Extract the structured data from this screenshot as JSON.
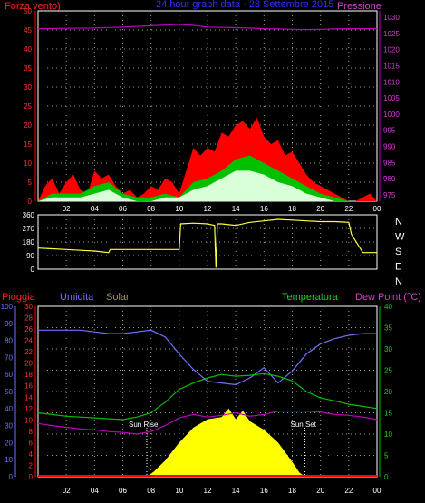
{
  "header": {
    "left_label": "Forza vento)",
    "title": "24 hour graph data - 28 Settembre 2015",
    "right_label": "Pressione"
  },
  "colors": {
    "background": "#000000",
    "wind": "#ff0000",
    "wind_avg": "#00c000",
    "gust_fill": "#d8ffd8",
    "pressure": "#c000c0",
    "direction": "#ffff40",
    "humidity": "#7070ff",
    "temperature": "#00c000",
    "dewpoint": "#c000c0",
    "solar": "#ffff00",
    "rain": "#ff0000",
    "solar_label": "#a09060",
    "grid_dot": "#9a9a9a"
  },
  "chart_data": [
    {
      "type": "area",
      "panel": "wind-pressure",
      "x_ticks": [
        "02",
        "04",
        "06",
        "08",
        "10",
        "12",
        "14",
        "16",
        "18",
        "20",
        "22",
        "00"
      ],
      "ylabel_left": "Forza vento)",
      "ylabel_right": "Pressione",
      "y_left_ticks": [
        0,
        5,
        10,
        15,
        20,
        25,
        30,
        35,
        40,
        45,
        50
      ],
      "y_left_lim": [
        0,
        50
      ],
      "y_right_ticks": [
        975,
        980,
        985,
        990,
        995,
        1000,
        1005,
        1010,
        1015,
        1020,
        1025,
        1030
      ],
      "y_right_lim": [
        973,
        1032
      ],
      "x_lim": [
        0,
        24
      ],
      "series": [
        {
          "name": "Pressione",
          "axis": "right",
          "x": [
            0,
            2,
            4,
            6,
            8,
            9,
            10,
            11,
            12,
            13,
            14,
            15,
            16,
            17,
            18,
            19,
            20,
            21,
            22,
            23,
            24
          ],
          "y": [
            1026.5,
            1026.6,
            1026.7,
            1027.0,
            1027.4,
            1027.6,
            1027.8,
            1027.5,
            1027.0,
            1026.9,
            1026.8,
            1026.7,
            1026.5,
            1026.4,
            1026.3,
            1026.2,
            1026.3,
            1026.4,
            1026.5,
            1026.5,
            1026.5
          ]
        }
      ],
      "wind_max": {
        "x": [
          0,
          0.5,
          1,
          1.5,
          2,
          2.5,
          3,
          3.5,
          4,
          4.5,
          5,
          5.5,
          6,
          6.5,
          7,
          7.5,
          8,
          8.5,
          9,
          9.5,
          10,
          10.5,
          11,
          11.5,
          12,
          12.5,
          13,
          13.5,
          14,
          14.5,
          15,
          15.5,
          16,
          16.5,
          17,
          17.5,
          18,
          18.5,
          19,
          19.5,
          20,
          20.5,
          21,
          21.5,
          22,
          22.5,
          23,
          23.5,
          24
        ],
        "y": [
          0,
          4,
          6,
          2,
          5,
          7,
          3,
          2,
          8,
          6,
          7,
          4,
          2,
          3,
          1,
          2,
          4,
          3,
          6,
          5,
          2,
          8,
          14,
          12,
          14,
          13,
          18,
          17,
          20,
          21,
          19,
          22,
          17,
          15,
          16,
          12,
          13,
          10,
          7,
          5,
          4,
          3,
          2,
          1,
          0,
          0,
          1,
          2,
          0
        ]
      },
      "wind_avg": {
        "x": [
          0,
          1,
          2,
          3,
          4,
          5,
          6,
          7,
          8,
          9,
          10,
          11,
          12,
          13,
          14,
          15,
          16,
          17,
          18,
          19,
          20,
          21,
          22,
          23,
          24
        ],
        "y": [
          0,
          2,
          2,
          2,
          4,
          5,
          2,
          1,
          1,
          2,
          1,
          5,
          6,
          8,
          11,
          12,
          10,
          8,
          6,
          4,
          2,
          1,
          0,
          0,
          0
        ]
      },
      "wind_gust": {
        "x": [
          0,
          1,
          2,
          3,
          4,
          5,
          6,
          7,
          8,
          9,
          10,
          11,
          12,
          13,
          14,
          15,
          16,
          17,
          18,
          19,
          20,
          21,
          22,
          23,
          24
        ],
        "y": [
          0,
          1,
          1,
          1,
          2,
          3,
          1,
          0,
          0,
          1,
          1,
          3,
          4,
          6,
          8,
          8,
          7,
          5,
          4,
          2,
          1,
          0,
          0,
          0,
          0
        ]
      }
    },
    {
      "type": "line",
      "panel": "wind-direction",
      "y_ticks": [
        0,
        90,
        180,
        270,
        360
      ],
      "y_lim": [
        0,
        360
      ],
      "x_lim": [
        0,
        24
      ],
      "compass_labels": [
        "N",
        "W",
        "S",
        "E",
        "N"
      ],
      "series": [
        {
          "name": "direction",
          "x": [
            0,
            1,
            2,
            3,
            4,
            5,
            5.1,
            6,
            7,
            8,
            9,
            10,
            10.1,
            11,
            12,
            12.5,
            12.6,
            12.7,
            13,
            14,
            15,
            16,
            17,
            18,
            19,
            20,
            21,
            22,
            22.2,
            23,
            24
          ],
          "y": [
            140,
            135,
            130,
            125,
            120,
            110,
            130,
            130,
            130,
            130,
            130,
            130,
            300,
            305,
            300,
            290,
            10,
            300,
            300,
            290,
            310,
            320,
            330,
            325,
            320,
            315,
            315,
            310,
            230,
            110,
            110
          ]
        }
      ]
    },
    {
      "type": "line",
      "panel": "temperature-humidity",
      "x_ticks": [
        "02",
        "04",
        "06",
        "08",
        "10",
        "12",
        "14",
        "16",
        "18",
        "20",
        "22",
        "00"
      ],
      "labels": {
        "rain": "Pioggia",
        "humidity": "Umidita",
        "solar": "Solar",
        "temperature": "Temperatura",
        "dewpoint": "Dew Point (°C)"
      },
      "annotations": [
        "Sun Rise",
        "Sun Set"
      ],
      "y_humidity_ticks": [
        0,
        10,
        20,
        30,
        40,
        50,
        60,
        70,
        80,
        90,
        100
      ],
      "y_rain_ticks": [
        0,
        2,
        4,
        6,
        8,
        10,
        12,
        14,
        16,
        18,
        20,
        22,
        24,
        26,
        28,
        30
      ],
      "y_temp_ticks": [
        0,
        5,
        10,
        15,
        20,
        25,
        30,
        35,
        40
      ],
      "y_temp_lim": [
        0,
        40
      ],
      "x_lim": [
        0,
        24
      ],
      "series": [
        {
          "name": "Umidita",
          "axis": "humidity",
          "x": [
            0,
            1,
            2,
            3,
            4,
            5,
            6,
            7,
            8,
            9,
            10,
            11,
            12,
            13,
            14,
            15,
            16,
            17,
            18,
            19,
            20,
            21,
            22,
            23,
            24
          ],
          "y": [
            86,
            86,
            86,
            86,
            85,
            84,
            84,
            85,
            86,
            82,
            72,
            63,
            56,
            55,
            54,
            58,
            64,
            55,
            62,
            72,
            78,
            81,
            83,
            84,
            84
          ]
        },
        {
          "name": "Temperatura",
          "axis": "temp",
          "x": [
            0,
            1,
            2,
            3,
            4,
            5,
            6,
            7,
            8,
            9,
            10,
            11,
            12,
            13,
            14,
            15,
            16,
            17,
            18,
            19,
            20,
            21,
            22,
            23,
            24
          ],
          "y": [
            15.0,
            14.6,
            14.2,
            14.0,
            13.8,
            13.6,
            13.4,
            14.0,
            15.0,
            17.5,
            20.5,
            22.0,
            23.2,
            24.0,
            23.6,
            23.8,
            24.2,
            23.6,
            22.5,
            20.0,
            18.5,
            17.8,
            17.0,
            16.5,
            16.0
          ]
        },
        {
          "name": "Dew Point",
          "axis": "temp",
          "x": [
            0,
            1,
            2,
            3,
            4,
            5,
            6,
            7,
            8,
            9,
            10,
            11,
            12,
            13,
            14,
            15,
            16,
            17,
            18,
            19,
            20,
            21,
            22,
            23,
            24
          ],
          "y": [
            12.5,
            12.0,
            11.6,
            11.2,
            11.0,
            10.6,
            10.4,
            10.0,
            10.6,
            12.0,
            13.8,
            14.6,
            14.0,
            14.4,
            15.0,
            14.2,
            14.6,
            15.4,
            15.4,
            15.4,
            15.2,
            14.6,
            14.4,
            14.0,
            13.4
          ]
        },
        {
          "name": "Solar",
          "axis": "temp",
          "x": [
            7.7,
            8.2,
            9,
            10,
            11,
            12,
            13,
            13.5,
            14,
            14.5,
            15,
            16,
            17,
            18,
            18.5,
            18.9
          ],
          "y": [
            0,
            1.2,
            3.8,
            8.0,
            11.5,
            13.5,
            14.0,
            16.0,
            13.5,
            15.5,
            13.0,
            11.0,
            8.0,
            3.5,
            1.0,
            0
          ]
        }
      ]
    }
  ]
}
